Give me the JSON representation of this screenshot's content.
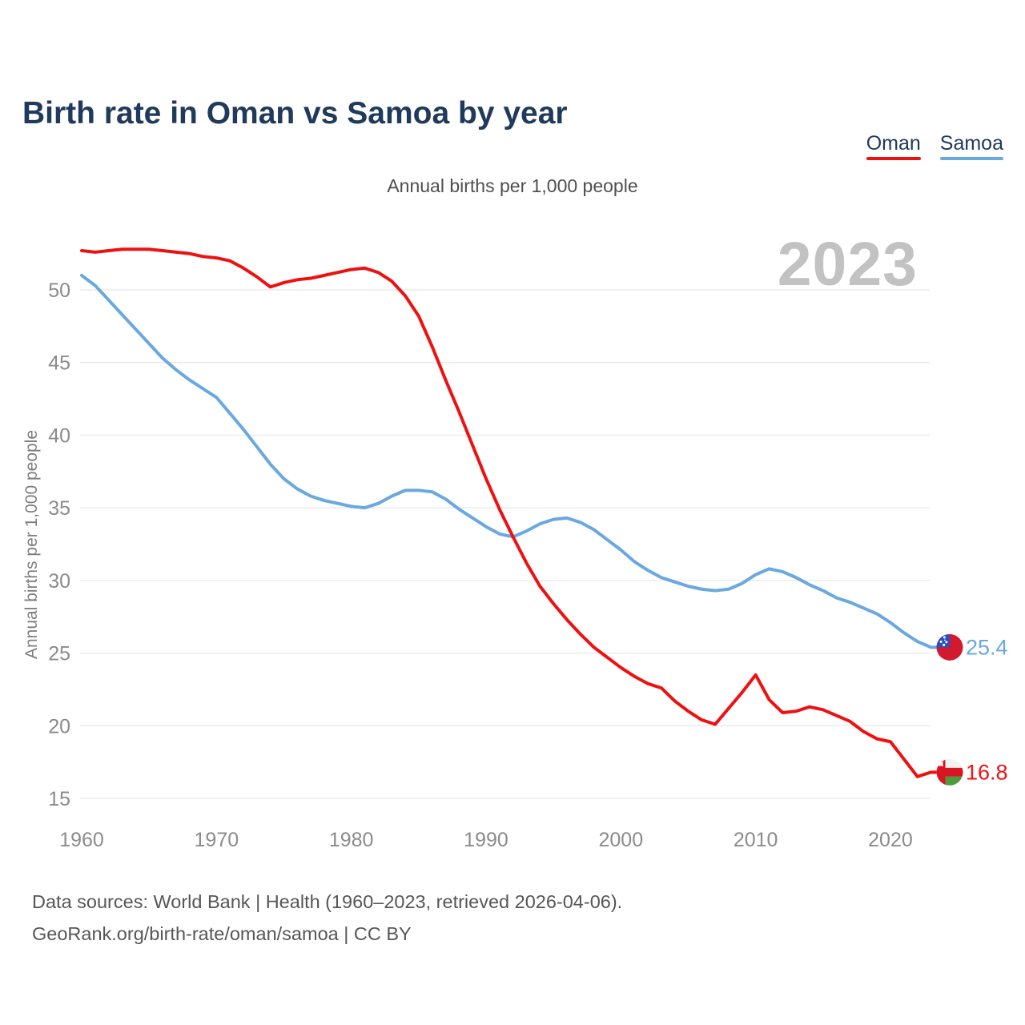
{
  "header": {
    "title": "Birth rate in Oman vs Samoa by year"
  },
  "legend": {
    "items": [
      {
        "label": "Oman",
        "color": "#ee1111"
      },
      {
        "label": "Samoa",
        "color": "#6aa8e0"
      }
    ]
  },
  "chart_data": {
    "type": "line",
    "title": "Birth rate in Oman vs Samoa by year",
    "subtitle": "Annual births per 1,000 people",
    "ylabel": "Annual births per 1,000 people",
    "xlabel": "",
    "watermark": "2023",
    "grid": "horizontal-only",
    "legend_position": "top-right",
    "xlim": [
      1960,
      2023
    ],
    "ylim": [
      14,
      54
    ],
    "x_ticks": [
      1960,
      1970,
      1980,
      1990,
      2000,
      2010,
      2020
    ],
    "y_ticks": [
      15,
      20,
      25,
      30,
      35,
      40,
      45,
      50
    ],
    "x": [
      1960,
      1961,
      1962,
      1963,
      1964,
      1965,
      1966,
      1967,
      1968,
      1969,
      1970,
      1971,
      1972,
      1973,
      1974,
      1975,
      1976,
      1977,
      1978,
      1979,
      1980,
      1981,
      1982,
      1983,
      1984,
      1985,
      1986,
      1987,
      1988,
      1989,
      1990,
      1991,
      1992,
      1993,
      1994,
      1995,
      1996,
      1997,
      1998,
      1999,
      2000,
      2001,
      2002,
      2003,
      2004,
      2005,
      2006,
      2007,
      2008,
      2009,
      2010,
      2011,
      2012,
      2013,
      2014,
      2015,
      2016,
      2017,
      2018,
      2019,
      2020,
      2021,
      2022,
      2023
    ],
    "series": [
      {
        "name": "Oman",
        "flag": "oman",
        "color": "#ee1111",
        "end_label": "16.8",
        "values": [
          52.7,
          52.6,
          52.7,
          52.8,
          52.8,
          52.8,
          52.7,
          52.6,
          52.5,
          52.3,
          52.2,
          52.0,
          51.5,
          50.9,
          50.2,
          50.5,
          50.7,
          50.8,
          51.0,
          51.2,
          51.4,
          51.5,
          51.2,
          50.6,
          49.6,
          48.2,
          46.1,
          43.8,
          41.6,
          39.3,
          37.0,
          34.9,
          33.0,
          31.2,
          29.6,
          28.4,
          27.3,
          26.3,
          25.4,
          24.7,
          24.0,
          23.4,
          22.9,
          22.6,
          21.7,
          21.0,
          20.4,
          20.1,
          21.2,
          22.3,
          23.5,
          21.8,
          20.9,
          21.0,
          21.3,
          21.1,
          20.7,
          20.3,
          19.6,
          19.1,
          18.9,
          17.7,
          16.5,
          16.8
        ]
      },
      {
        "name": "Samoa",
        "flag": "samoa",
        "color": "#6aa8e0",
        "end_label": "25.4",
        "values": [
          51.0,
          50.3,
          49.3,
          48.3,
          47.3,
          46.3,
          45.3,
          44.5,
          43.8,
          43.2,
          42.6,
          41.5,
          40.4,
          39.2,
          38.0,
          37.0,
          36.3,
          35.8,
          35.5,
          35.3,
          35.1,
          35.0,
          35.3,
          35.8,
          36.2,
          36.2,
          36.1,
          35.6,
          34.9,
          34.3,
          33.7,
          33.2,
          33.0,
          33.4,
          33.9,
          34.2,
          34.3,
          34.0,
          33.5,
          32.8,
          32.1,
          31.3,
          30.7,
          30.2,
          29.9,
          29.6,
          29.4,
          29.3,
          29.4,
          29.8,
          30.4,
          30.8,
          30.6,
          30.2,
          29.7,
          29.3,
          28.8,
          28.5,
          28.1,
          27.7,
          27.1,
          26.4,
          25.8,
          25.4
        ]
      }
    ]
  },
  "footer": {
    "line1": "Data sources: World Bank | Health (1960–2023, retrieved 2026-04-06).",
    "line2": "GeoRank.org/birth-rate/oman/samoa | CC BY"
  }
}
